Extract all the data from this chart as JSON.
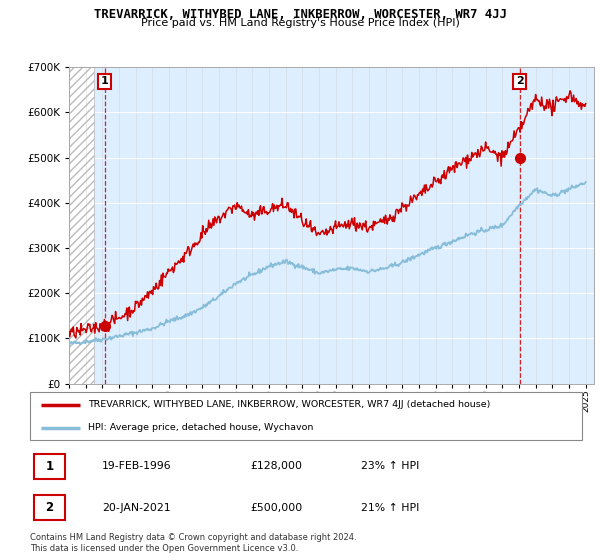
{
  "title": "TREVARRICK, WITHYBED LANE, INKBERROW, WORCESTER, WR7 4JJ",
  "subtitle": "Price paid vs. HM Land Registry's House Price Index (HPI)",
  "legend_line1": "TREVARRICK, WITHYBED LANE, INKBERROW, WORCESTER, WR7 4JJ (detached house)",
  "legend_line2": "HPI: Average price, detached house, Wychavon",
  "annotation1_label": "1",
  "annotation1_date": "19-FEB-1996",
  "annotation1_price": "£128,000",
  "annotation1_hpi": "23% ↑ HPI",
  "annotation2_label": "2",
  "annotation2_date": "20-JAN-2021",
  "annotation2_price": "£500,000",
  "annotation2_hpi": "21% ↑ HPI",
  "footer": "Contains HM Land Registry data © Crown copyright and database right 2024.\nThis data is licensed under the Open Government Licence v3.0.",
  "ylim": [
    0,
    700000
  ],
  "xlim_start": 1994.0,
  "xlim_end": 2025.5,
  "red_color": "#cc0000",
  "blue_color": "#87bdd8",
  "bg_color": "#ddeeff",
  "sale1_year": 1996.13,
  "sale1_value": 128000,
  "sale2_year": 2021.05,
  "sale2_value": 500000,
  "hpi_years": [
    1994,
    1995,
    1996,
    1997,
    1998,
    1999,
    2000,
    2001,
    2002,
    2003,
    2004,
    2005,
    2006,
    2007,
    2008,
    2009,
    2010,
    2011,
    2012,
    2013,
    2014,
    2015,
    2016,
    2017,
    2018,
    2019,
    2020,
    2021,
    2022,
    2023,
    2024,
    2025
  ],
  "hpi_vals": [
    88000,
    93000,
    98000,
    105000,
    113000,
    122000,
    138000,
    150000,
    168000,
    193000,
    222000,
    240000,
    260000,
    270000,
    258000,
    244000,
    252000,
    255000,
    248000,
    255000,
    268000,
    285000,
    300000,
    315000,
    330000,
    340000,
    350000,
    395000,
    430000,
    415000,
    430000,
    445000
  ],
  "price_years": [
    1994,
    1995,
    1996,
    1997,
    1998,
    1999,
    2000,
    2001,
    2002,
    2003,
    2004,
    2005,
    2006,
    2007,
    2008,
    2009,
    2010,
    2011,
    2012,
    2013,
    2014,
    2015,
    2016,
    2017,
    2018,
    2019,
    2020,
    2021,
    2022,
    2023,
    2024,
    2025
  ],
  "price_vals": [
    110000,
    118000,
    128000,
    145000,
    170000,
    205000,
    248000,
    285000,
    330000,
    365000,
    395000,
    370000,
    385000,
    395000,
    360000,
    325000,
    345000,
    355000,
    345000,
    360000,
    390000,
    415000,
    445000,
    475000,
    500000,
    520000,
    500000,
    560000,
    630000,
    610000,
    640000,
    610000
  ]
}
